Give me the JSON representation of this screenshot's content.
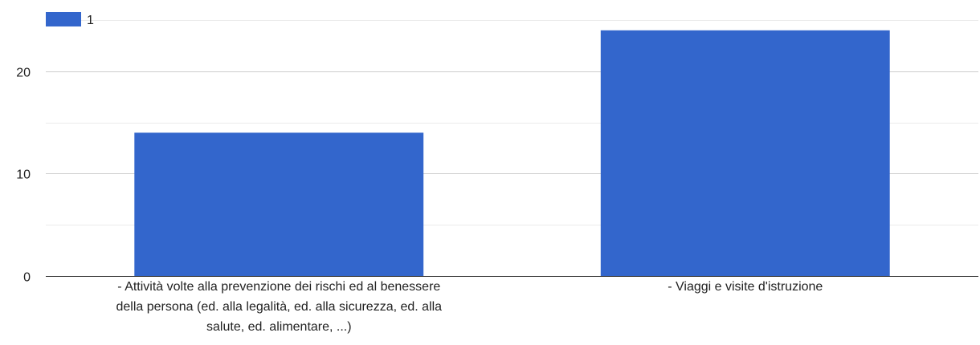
{
  "chart_data": {
    "type": "bar",
    "categories": [
      "- Attività volte alla prevenzione dei rischi ed al benessere della persona (ed. alla legalità, ed. alla sicurezza, ed. alla salute, ed. alimentare, ...)",
      "- Viaggi e visite d'istruzione"
    ],
    "category_label_lines": [
      [
        "- Attività volte alla prevenzione dei rischi ed al benessere",
        "della persona (ed. alla legalità, ed. alla sicurezza, ed. alla",
        "salute, ed. alimentare, ...)"
      ],
      [
        "- Viaggi e visite d'istruzione"
      ]
    ],
    "series": [
      {
        "name": "1",
        "values": [
          14,
          24
        ],
        "color": "#3366cc"
      }
    ],
    "ylim": [
      0,
      25
    ],
    "yticks": [
      0,
      10,
      20
    ],
    "minor_gridlines": [
      5,
      15,
      25
    ],
    "grid": true,
    "legend": "top-left",
    "title": "",
    "xlabel": "",
    "ylabel": ""
  },
  "colors": {
    "bar": "#3366cc",
    "gridline": "#cccccc",
    "minor_gridline": "#ebebeb",
    "baseline": "#333333",
    "text": "#222222"
  }
}
